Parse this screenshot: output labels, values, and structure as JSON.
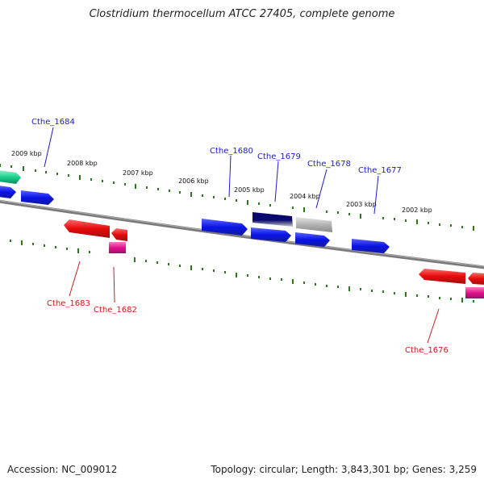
{
  "title": "Clostridium thermocellum ATCC 27405, complete genome",
  "footer": {
    "accession": "Accession: NC_009012",
    "summary": "Topology: circular; Length: 3,843,301 bp; Genes: 3,259"
  },
  "colors": {
    "forward_gene": "#0a14e6",
    "reverse_gene": "#e60a0a",
    "rna_gene": "#e0148c",
    "highlight_gene_dark": "#0a0a6e",
    "highlight_gene_gray": "#b4b4b4",
    "teal_gene": "#19d28c",
    "backbone": "#7a7a7a",
    "tick": "#2a7a1a",
    "forward_label": "#1a1ad2",
    "reverse_label": "#d21a1a"
  },
  "kbp_labels": [
    "2009 kbp",
    "2008 kbp",
    "2007 kbp",
    "2006 kbp",
    "2005 kbp",
    "2004 kbp",
    "2003 kbp",
    "2002 kbp"
  ],
  "forward_labels": [
    "Cthe_1684",
    "Cthe_1680",
    "Cthe_1679",
    "Cthe_1678",
    "Cthe_1677"
  ],
  "reverse_labels": [
    "Cthe_1683",
    "Cthe_1682",
    "Cthe_1676"
  ]
}
